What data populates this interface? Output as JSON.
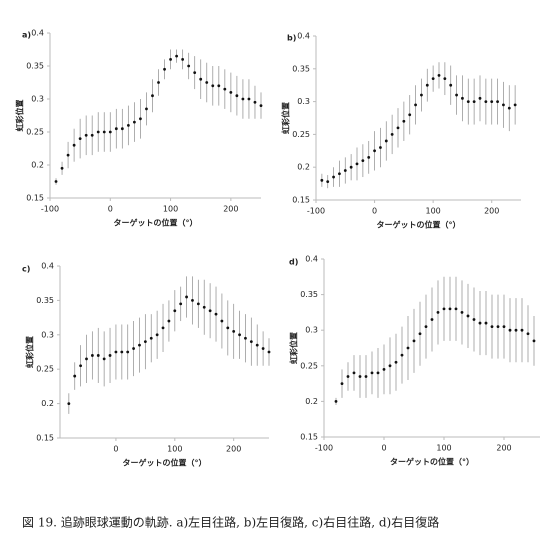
{
  "chart_data": [
    {
      "type": "scatter",
      "title": "a)",
      "xlabel": "ターゲットの位置（°）",
      "ylabel": "虹彩位置",
      "xlim": [
        -100,
        250
      ],
      "ylim": [
        0.15,
        0.4
      ],
      "xticks": [
        -100,
        0,
        100,
        200
      ],
      "yticks": [
        0.15,
        0.2,
        0.25,
        0.3,
        0.35,
        0.4
      ],
      "x": [
        -90,
        -80,
        -70,
        -60,
        -50,
        -40,
        -30,
        -20,
        -10,
        0,
        10,
        20,
        30,
        40,
        50,
        60,
        70,
        80,
        90,
        100,
        110,
        120,
        130,
        140,
        150,
        160,
        170,
        180,
        190,
        200,
        210,
        220,
        230,
        240,
        250
      ],
      "series": [
        {
          "color": "#111",
          "error_color": "#999",
          "values": [
            0.175,
            0.195,
            0.215,
            0.23,
            0.24,
            0.245,
            0.245,
            0.25,
            0.25,
            0.25,
            0.255,
            0.255,
            0.26,
            0.265,
            0.27,
            0.285,
            0.305,
            0.325,
            0.345,
            0.36,
            0.365,
            0.36,
            0.35,
            0.34,
            0.33,
            0.325,
            0.32,
            0.32,
            0.315,
            0.31,
            0.305,
            0.3,
            0.3,
            0.295,
            0.29
          ],
          "errors": [
            0.005,
            0.01,
            0.02,
            0.025,
            0.03,
            0.03,
            0.03,
            0.03,
            0.03,
            0.03,
            0.03,
            0.03,
            0.03,
            0.03,
            0.03,
            0.025,
            0.025,
            0.02,
            0.015,
            0.015,
            0.01,
            0.015,
            0.02,
            0.025,
            0.03,
            0.03,
            0.03,
            0.03,
            0.03,
            0.03,
            0.03,
            0.03,
            0.03,
            0.025,
            0.02
          ]
        }
      ]
    },
    {
      "type": "scatter",
      "title": "b)",
      "xlabel": "ターゲットの位置（°）",
      "ylabel": "虹彩位置",
      "xlim": [
        -100,
        250
      ],
      "ylim": [
        0.15,
        0.4
      ],
      "xticks": [
        -100,
        0,
        100,
        200
      ],
      "yticks": [
        0.15,
        0.2,
        0.25,
        0.3,
        0.35,
        0.4
      ],
      "x": [
        -90,
        -80,
        -70,
        -60,
        -50,
        -40,
        -30,
        -20,
        -10,
        0,
        10,
        20,
        30,
        40,
        50,
        60,
        70,
        80,
        90,
        100,
        110,
        120,
        130,
        140,
        150,
        160,
        170,
        180,
        190,
        200,
        210,
        220,
        230,
        240
      ],
      "series": [
        {
          "color": "#111",
          "error_color": "#999",
          "values": [
            0.18,
            0.178,
            0.185,
            0.19,
            0.195,
            0.2,
            0.205,
            0.21,
            0.215,
            0.225,
            0.23,
            0.24,
            0.25,
            0.26,
            0.27,
            0.28,
            0.295,
            0.31,
            0.325,
            0.335,
            0.34,
            0.335,
            0.325,
            0.31,
            0.305,
            0.3,
            0.3,
            0.305,
            0.3,
            0.3,
            0.3,
            0.295,
            0.29,
            0.295
          ],
          "errors": [
            0.01,
            0.01,
            0.015,
            0.02,
            0.02,
            0.02,
            0.025,
            0.025,
            0.025,
            0.03,
            0.03,
            0.03,
            0.03,
            0.03,
            0.03,
            0.03,
            0.03,
            0.025,
            0.025,
            0.02,
            0.02,
            0.025,
            0.03,
            0.03,
            0.035,
            0.035,
            0.035,
            0.035,
            0.035,
            0.035,
            0.035,
            0.035,
            0.035,
            0.03
          ]
        }
      ]
    },
    {
      "type": "scatter",
      "title": "c)",
      "xlabel": "ターゲットの位置（°）",
      "ylabel": "虹彩位置",
      "xlim": [
        -95,
        260
      ],
      "ylim": [
        0.15,
        0.4
      ],
      "xticks": [
        0,
        100,
        200
      ],
      "yticks": [
        0.15,
        0.2,
        0.25,
        0.3,
        0.35,
        0.4
      ],
      "x": [
        -80,
        -70,
        -60,
        -50,
        -40,
        -30,
        -20,
        -10,
        0,
        10,
        20,
        30,
        40,
        50,
        60,
        70,
        80,
        90,
        100,
        110,
        120,
        130,
        140,
        150,
        160,
        170,
        180,
        190,
        200,
        210,
        220,
        230,
        240,
        250,
        260
      ],
      "series": [
        {
          "color": "#111",
          "error_color": "#999",
          "values": [
            0.2,
            0.24,
            0.255,
            0.265,
            0.27,
            0.27,
            0.265,
            0.27,
            0.275,
            0.275,
            0.275,
            0.28,
            0.285,
            0.29,
            0.295,
            0.3,
            0.31,
            0.32,
            0.335,
            0.345,
            0.355,
            0.35,
            0.345,
            0.34,
            0.335,
            0.33,
            0.32,
            0.31,
            0.305,
            0.3,
            0.295,
            0.29,
            0.285,
            0.28,
            0.275
          ],
          "errors": [
            0.015,
            0.02,
            0.03,
            0.035,
            0.035,
            0.04,
            0.04,
            0.04,
            0.04,
            0.04,
            0.04,
            0.04,
            0.04,
            0.04,
            0.035,
            0.035,
            0.035,
            0.03,
            0.03,
            0.025,
            0.03,
            0.035,
            0.035,
            0.04,
            0.04,
            0.04,
            0.04,
            0.04,
            0.04,
            0.035,
            0.035,
            0.035,
            0.03,
            0.025,
            0.02
          ]
        }
      ]
    },
    {
      "type": "scatter",
      "title": "d)",
      "xlabel": "ターゲットの位置（°）",
      "ylabel": "虹彩位置",
      "xlim": [
        -100,
        260
      ],
      "ylim": [
        0.15,
        0.4
      ],
      "xticks": [
        -100,
        0,
        100,
        200
      ],
      "yticks": [
        0.15,
        0.2,
        0.25,
        0.3,
        0.35,
        0.4
      ],
      "x": [
        -80,
        -70,
        -60,
        -50,
        -40,
        -30,
        -20,
        -10,
        0,
        10,
        20,
        30,
        40,
        50,
        60,
        70,
        80,
        90,
        100,
        110,
        120,
        130,
        140,
        150,
        160,
        170,
        180,
        190,
        200,
        210,
        220,
        230,
        240,
        250
      ],
      "series": [
        {
          "color": "#111",
          "error_color": "#999",
          "values": [
            0.2,
            0.225,
            0.235,
            0.24,
            0.235,
            0.235,
            0.24,
            0.24,
            0.245,
            0.25,
            0.255,
            0.265,
            0.275,
            0.285,
            0.295,
            0.305,
            0.315,
            0.325,
            0.33,
            0.33,
            0.33,
            0.325,
            0.32,
            0.315,
            0.31,
            0.31,
            0.305,
            0.305,
            0.305,
            0.3,
            0.3,
            0.3,
            0.295,
            0.285
          ],
          "errors": [
            0.005,
            0.02,
            0.02,
            0.025,
            0.03,
            0.03,
            0.03,
            0.035,
            0.035,
            0.04,
            0.04,
            0.04,
            0.045,
            0.045,
            0.045,
            0.045,
            0.045,
            0.045,
            0.045,
            0.045,
            0.045,
            0.045,
            0.045,
            0.045,
            0.045,
            0.045,
            0.045,
            0.045,
            0.045,
            0.045,
            0.045,
            0.045,
            0.04,
            0.035
          ]
        }
      ]
    }
  ],
  "caption": "図 19. 追跡眼球運動の軌跡. a)左目往路, b)左目復路, c)右目往路, d)右目復路"
}
